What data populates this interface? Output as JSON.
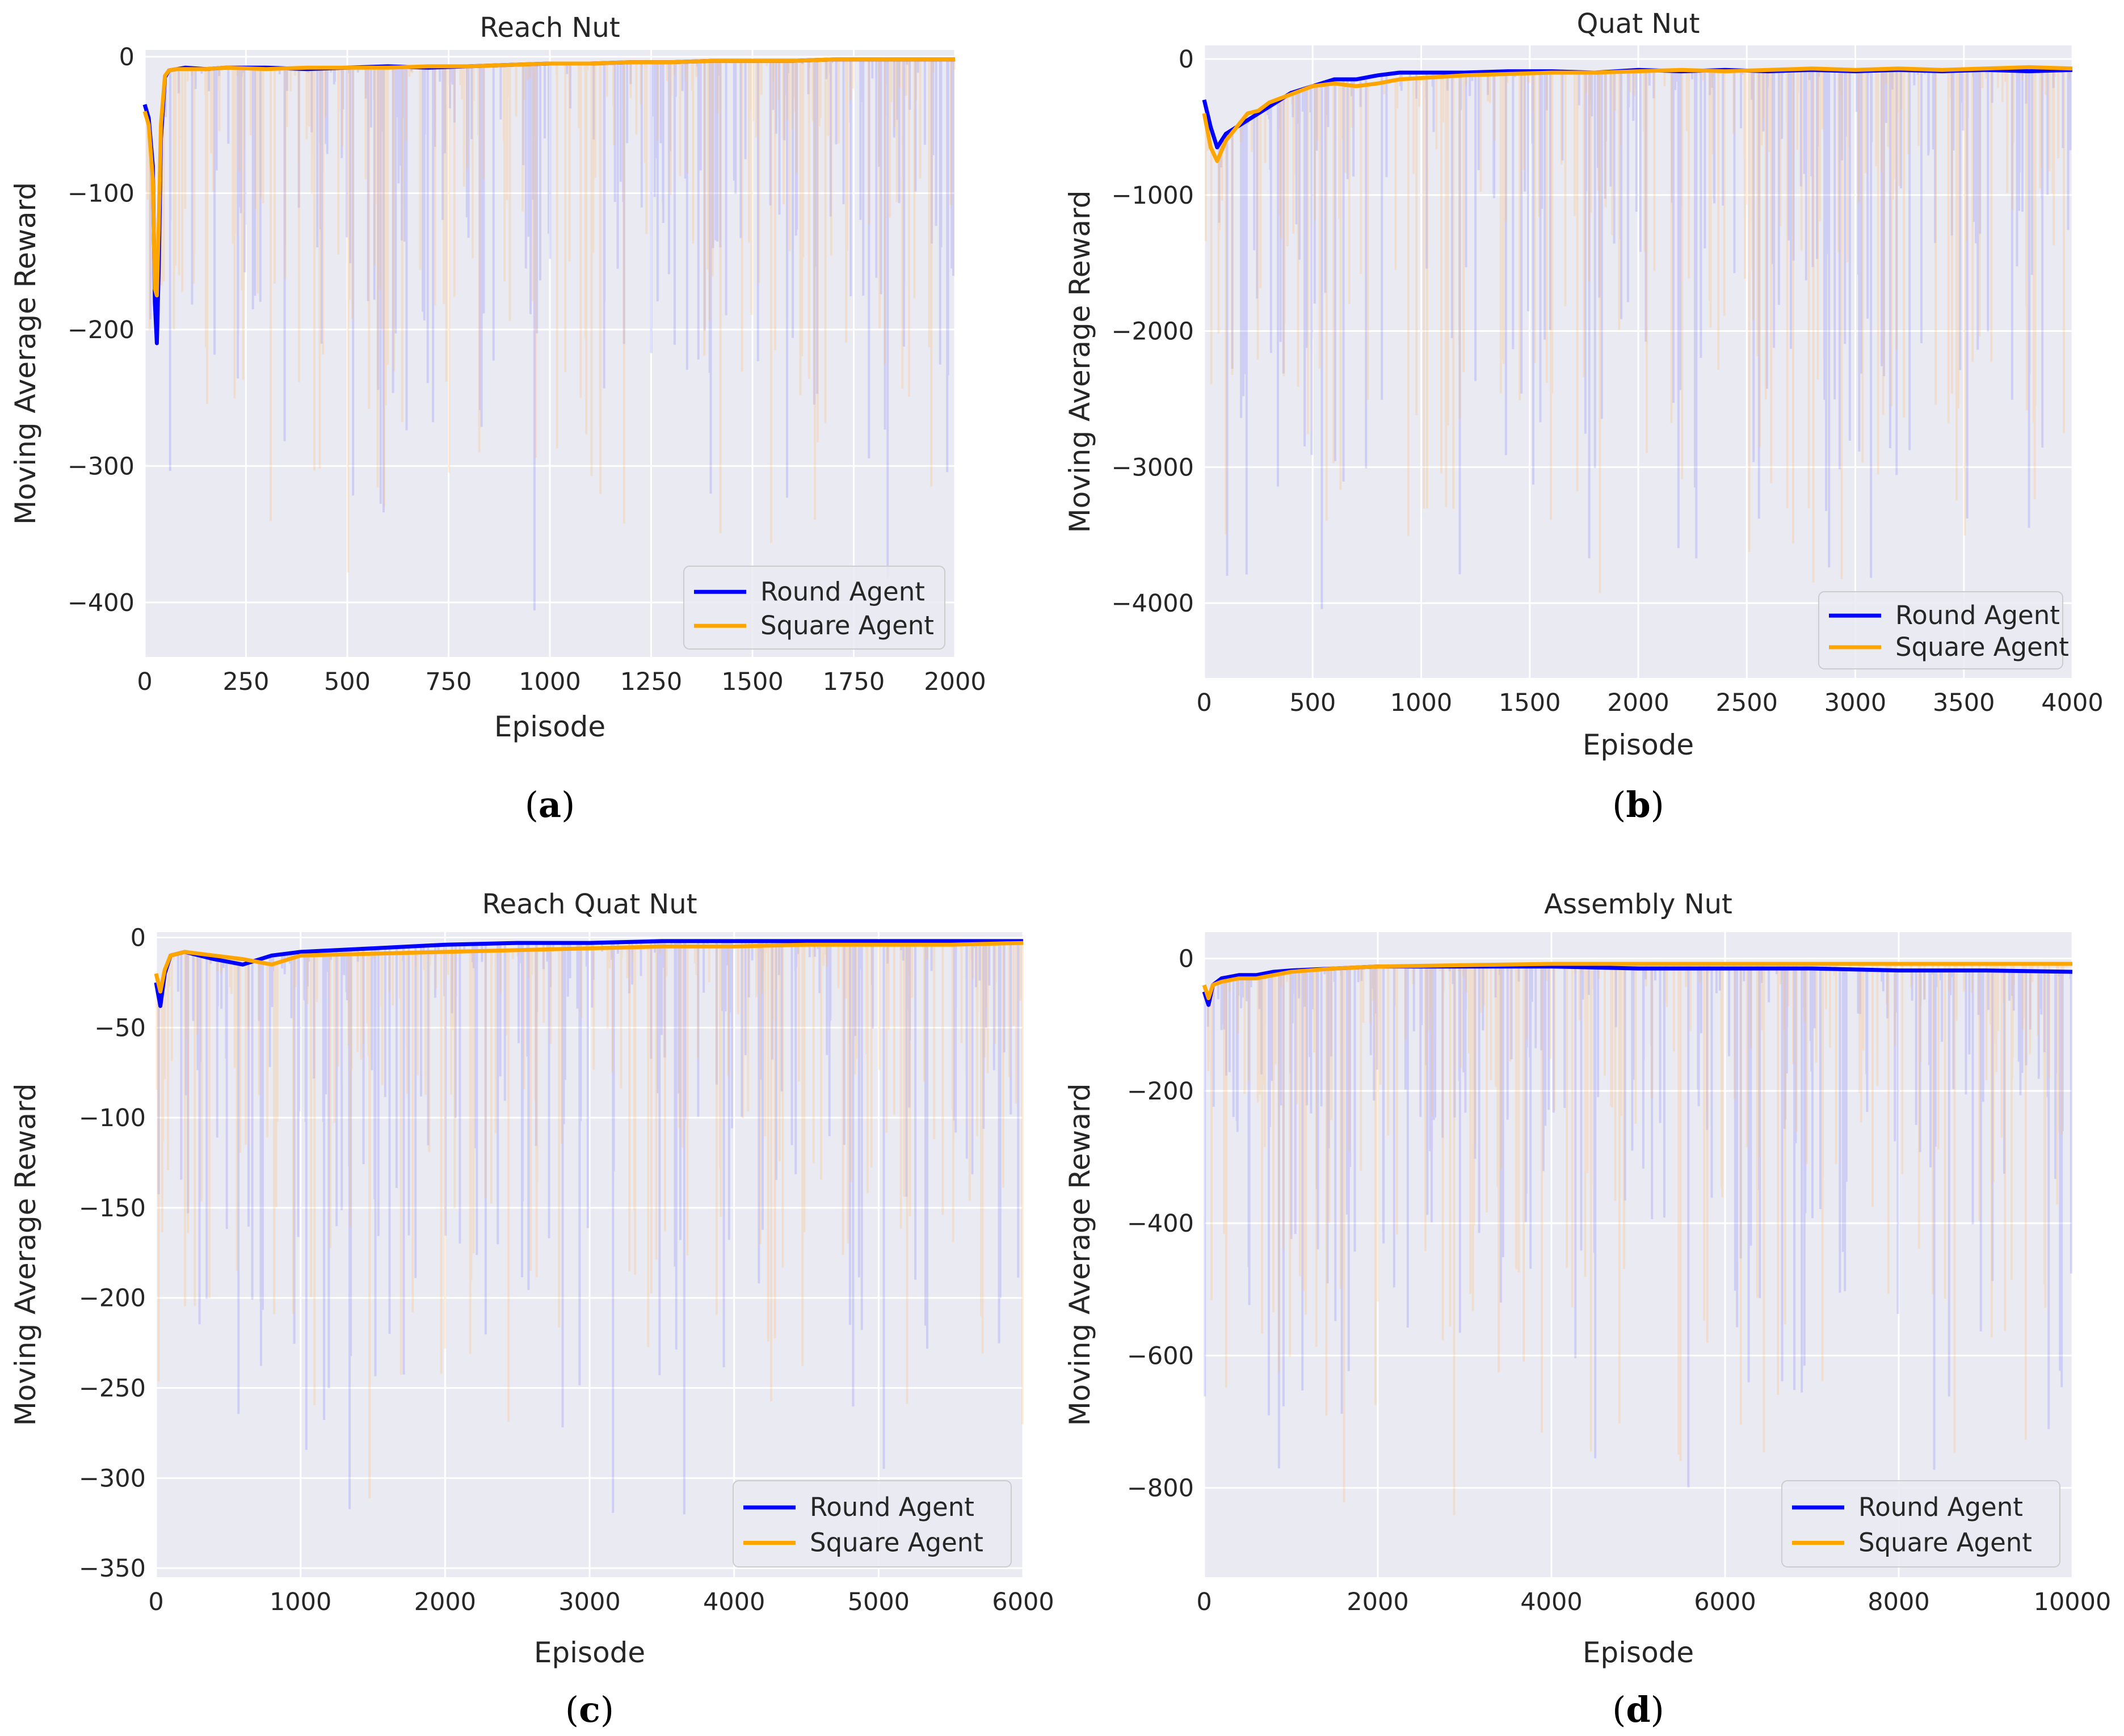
{
  "chart_data": [
    {
      "type": "line",
      "title": "Reach Nut",
      "caption": "a",
      "xlabel": "Episode",
      "ylabel": "Moving Average Reward",
      "xlim": [
        0,
        2000
      ],
      "ylim": [
        -440,
        5
      ],
      "xticks": [
        0,
        250,
        500,
        750,
        1000,
        1250,
        1500,
        1750,
        2000
      ],
      "yticks": [
        0,
        -100,
        -200,
        -300,
        -400
      ],
      "ytick_labels": [
        "0",
        "−100",
        "−200",
        "−300",
        "−400"
      ],
      "legend": [
        "Round Agent",
        "Square Agent"
      ],
      "series": [
        {
          "name": "Round Agent",
          "color": "#0000ff",
          "x": [
            0,
            10,
            20,
            25,
            30,
            35,
            40,
            50,
            60,
            80,
            100,
            150,
            200,
            300,
            400,
            500,
            600,
            700,
            800,
            900,
            1000,
            1100,
            1200,
            1300,
            1400,
            1500,
            1600,
            1700,
            1800,
            1900,
            2000
          ],
          "y": [
            -35,
            -45,
            -80,
            -180,
            -210,
            -150,
            -60,
            -15,
            -10,
            -9,
            -8,
            -9,
            -8,
            -8,
            -9,
            -8,
            -7,
            -8,
            -7,
            -6,
            -5,
            -5,
            -4,
            -4,
            -3,
            -3,
            -3,
            -2,
            -2,
            -2,
            -2
          ]
        },
        {
          "name": "Square Agent",
          "color": "#ffa500",
          "x": [
            0,
            10,
            20,
            25,
            30,
            35,
            40,
            50,
            60,
            80,
            100,
            150,
            200,
            300,
            400,
            500,
            600,
            700,
            800,
            900,
            1000,
            1100,
            1200,
            1300,
            1400,
            1500,
            1600,
            1700,
            1800,
            1900,
            2000
          ],
          "y": [
            -40,
            -50,
            -90,
            -170,
            -175,
            -120,
            -50,
            -14,
            -10,
            -9,
            -9,
            -9,
            -8,
            -9,
            -8,
            -8,
            -8,
            -7,
            -7,
            -6,
            -5,
            -5,
            -4,
            -4,
            -3,
            -3,
            -3,
            -2,
            -2,
            -2,
            -2
          ]
        }
      ]
    },
    {
      "type": "line",
      "title": "Quat Nut",
      "caption": "b",
      "xlabel": "Episode",
      "ylabel": "Moving Average Reward",
      "xlim": [
        0,
        4000
      ],
      "ylim": [
        -4550,
        100
      ],
      "xticks": [
        0,
        500,
        1000,
        1500,
        2000,
        2500,
        3000,
        3500,
        4000
      ],
      "yticks": [
        0,
        -1000,
        -2000,
        -3000,
        -4000
      ],
      "ytick_labels": [
        "0",
        "−1000",
        "−2000",
        "−3000",
        "−4000"
      ],
      "legend": [
        "Round Agent",
        "Square Agent"
      ],
      "series": [
        {
          "name": "Round Agent",
          "color": "#0000ff",
          "x": [
            0,
            30,
            60,
            100,
            150,
            200,
            250,
            300,
            400,
            500,
            600,
            700,
            800,
            900,
            1000,
            1200,
            1400,
            1600,
            1800,
            2000,
            2200,
            2400,
            2600,
            2800,
            3000,
            3200,
            3400,
            3600,
            3800,
            4000
          ],
          "y": [
            -300,
            -500,
            -650,
            -550,
            -500,
            -450,
            -400,
            -350,
            -250,
            -200,
            -150,
            -150,
            -120,
            -100,
            -100,
            -100,
            -90,
            -90,
            -100,
            -80,
            -90,
            -80,
            -90,
            -80,
            -90,
            -80,
            -90,
            -80,
            -90,
            -80
          ]
        },
        {
          "name": "Square Agent",
          "color": "#ffa500",
          "x": [
            0,
            30,
            60,
            100,
            150,
            200,
            250,
            300,
            400,
            500,
            600,
            700,
            800,
            900,
            1000,
            1200,
            1400,
            1600,
            1800,
            2000,
            2200,
            2400,
            2600,
            2800,
            3000,
            3200,
            3400,
            3600,
            3800,
            4000
          ],
          "y": [
            -400,
            -650,
            -750,
            -600,
            -500,
            -400,
            -380,
            -320,
            -260,
            -200,
            -180,
            -200,
            -180,
            -150,
            -140,
            -120,
            -110,
            -100,
            -100,
            -90,
            -80,
            -90,
            -80,
            -70,
            -80,
            -70,
            -80,
            -70,
            -60,
            -70
          ]
        }
      ]
    },
    {
      "type": "line",
      "title": "Reach Quat Nut",
      "caption": "c",
      "xlabel": "Episode",
      "ylabel": "Moving Average Reward",
      "xlim": [
        0,
        6000
      ],
      "ylim": [
        -355,
        3
      ],
      "xticks": [
        0,
        1000,
        2000,
        3000,
        4000,
        5000,
        6000
      ],
      "yticks": [
        0,
        -50,
        -100,
        -150,
        -200,
        -250,
        -300,
        -350
      ],
      "ytick_labels": [
        "0",
        "−50",
        "−100",
        "−150",
        "−200",
        "−250",
        "−300",
        "−350"
      ],
      "legend": [
        "Round Agent",
        "Square Agent"
      ],
      "series": [
        {
          "name": "Round Agent",
          "color": "#0000ff",
          "x": [
            0,
            30,
            60,
            100,
            200,
            400,
            600,
            800,
            1000,
            1500,
            2000,
            2500,
            3000,
            3500,
            4000,
            4500,
            5000,
            5500,
            6000
          ],
          "y": [
            -25,
            -38,
            -20,
            -10,
            -8,
            -12,
            -15,
            -10,
            -8,
            -6,
            -4,
            -3,
            -3,
            -2,
            -2,
            -2,
            -2,
            -2,
            -2
          ]
        },
        {
          "name": "Square Agent",
          "color": "#ffa500",
          "x": [
            0,
            30,
            60,
            100,
            200,
            400,
            600,
            800,
            1000,
            1500,
            2000,
            2500,
            3000,
            3500,
            4000,
            4500,
            5000,
            5500,
            6000
          ],
          "y": [
            -20,
            -30,
            -18,
            -10,
            -8,
            -10,
            -12,
            -15,
            -10,
            -9,
            -8,
            -7,
            -6,
            -5,
            -5,
            -4,
            -4,
            -4,
            -3
          ]
        }
      ]
    },
    {
      "type": "line",
      "title": "Assembly Nut",
      "caption": "d",
      "xlabel": "Episode",
      "ylabel": "Moving Average Reward",
      "xlim": [
        0,
        10000
      ],
      "ylim": [
        -935,
        40
      ],
      "xticks": [
        0,
        2000,
        4000,
        6000,
        8000,
        10000
      ],
      "yticks": [
        0,
        -200,
        -400,
        -600,
        -800
      ],
      "ytick_labels": [
        "0",
        "−200",
        "−400",
        "−600",
        "−800"
      ],
      "legend": [
        "Round Agent",
        "Square Agent"
      ],
      "series": [
        {
          "name": "Round Agent",
          "color": "#0000ff",
          "x": [
            0,
            50,
            100,
            200,
            400,
            600,
            800,
            1000,
            1500,
            2000,
            3000,
            4000,
            5000,
            6000,
            7000,
            8000,
            9000,
            10000
          ],
          "y": [
            -50,
            -70,
            -40,
            -30,
            -25,
            -25,
            -20,
            -18,
            -15,
            -12,
            -12,
            -12,
            -15,
            -15,
            -15,
            -18,
            -18,
            -20
          ]
        },
        {
          "name": "Square Agent",
          "color": "#ffa500",
          "x": [
            0,
            50,
            100,
            200,
            400,
            600,
            800,
            1000,
            1500,
            2000,
            3000,
            4000,
            5000,
            6000,
            7000,
            8000,
            9000,
            10000
          ],
          "y": [
            -40,
            -60,
            -40,
            -35,
            -30,
            -30,
            -25,
            -20,
            -15,
            -12,
            -10,
            -8,
            -8,
            -8,
            -8,
            -8,
            -8,
            -8
          ]
        }
      ]
    }
  ]
}
